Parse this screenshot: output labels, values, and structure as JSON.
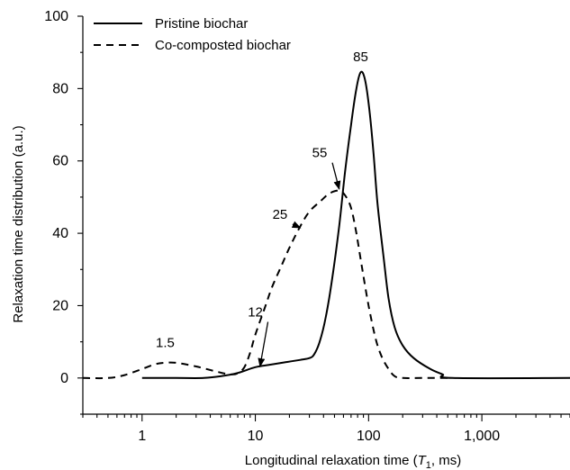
{
  "chart_data": {
    "type": "line",
    "xscale": "log",
    "xlim": [
      0.3,
      6000
    ],
    "ylim": [
      -10,
      100
    ],
    "xlabel": "Longitudinal relaxation time (T₁, ms)",
    "xlabel_parts": {
      "prefix": "Longitudinal relaxation time (",
      "var": "T",
      "sub": "1",
      "suffix": ", ms)"
    },
    "ylabel": "Relaxation time distribution (a.u.)",
    "x_ticks": [
      {
        "value": 1,
        "label": "1"
      },
      {
        "value": 10,
        "label": "10"
      },
      {
        "value": 100,
        "label": "100"
      },
      {
        "value": 1000,
        "label": "1,000"
      }
    ],
    "y_ticks": [
      {
        "value": 0,
        "label": "0"
      },
      {
        "value": 20,
        "label": "20"
      },
      {
        "value": 40,
        "label": "40"
      },
      {
        "value": 60,
        "label": "60"
      },
      {
        "value": 80,
        "label": "80"
      },
      {
        "value": 100,
        "label": "100"
      }
    ],
    "legend_position": "top-left",
    "series": [
      {
        "name": "Pristine biochar",
        "style": "solid",
        "color": "#000000",
        "points": [
          [
            1,
            0
          ],
          [
            2,
            0
          ],
          [
            3.5,
            0
          ],
          [
            5,
            0.5
          ],
          [
            7,
            1.4
          ],
          [
            10,
            3
          ],
          [
            13,
            3.6
          ],
          [
            18,
            4.3
          ],
          [
            25,
            5
          ],
          [
            30,
            5.5
          ],
          [
            33,
            6.5
          ],
          [
            37,
            10
          ],
          [
            42,
            17
          ],
          [
            48,
            28
          ],
          [
            55,
            42
          ],
          [
            62,
            57
          ],
          [
            70,
            70
          ],
          [
            78,
            80
          ],
          [
            85,
            84.5
          ],
          [
            92,
            83
          ],
          [
            100,
            76
          ],
          [
            110,
            63
          ],
          [
            120,
            48
          ],
          [
            135,
            34
          ],
          [
            150,
            22
          ],
          [
            170,
            14
          ],
          [
            200,
            9
          ],
          [
            250,
            5.5
          ],
          [
            350,
            2.5
          ],
          [
            450,
            1
          ],
          [
            550,
            0
          ],
          [
            6000,
            0
          ]
        ]
      },
      {
        "name": "Co-composted biochar",
        "style": "dashed",
        "color": "#000000",
        "points": [
          [
            0.3,
            0
          ],
          [
            0.5,
            0
          ],
          [
            0.7,
            0.8
          ],
          [
            1,
            2.5
          ],
          [
            1.3,
            3.8
          ],
          [
            1.6,
            4.2
          ],
          [
            2,
            4.2
          ],
          [
            3,
            3.2
          ],
          [
            4.5,
            1.8
          ],
          [
            6,
            1
          ],
          [
            7,
            1.3
          ],
          [
            8,
            3
          ],
          [
            9,
            7
          ],
          [
            10,
            12
          ],
          [
            12,
            19
          ],
          [
            14,
            25
          ],
          [
            17,
            31
          ],
          [
            20,
            36
          ],
          [
            25,
            42
          ],
          [
            30,
            46
          ],
          [
            38,
            49
          ],
          [
            45,
            51
          ],
          [
            55,
            51.8
          ],
          [
            62,
            50.5
          ],
          [
            70,
            47
          ],
          [
            78,
            40
          ],
          [
            88,
            30
          ],
          [
            100,
            20
          ],
          [
            115,
            11
          ],
          [
            130,
            6
          ],
          [
            150,
            2.5
          ],
          [
            170,
            0.5
          ],
          [
            200,
            0
          ],
          [
            300,
            0
          ],
          [
            500,
            0
          ]
        ]
      }
    ],
    "annotations": [
      {
        "text": "1.5",
        "x": 1.6,
        "y": 8.5,
        "arrow": false
      },
      {
        "text": "12",
        "x": 10,
        "y": 17,
        "arrow": true,
        "arrow_to": [
          11,
          3.2
        ]
      },
      {
        "text": "25",
        "x": 16.5,
        "y": 44,
        "arrow": true,
        "arrow_to": [
          25,
          41.5
        ]
      },
      {
        "text": "55",
        "x": 37,
        "y": 61,
        "arrow": true,
        "arrow_to": [
          55,
          52.2
        ]
      },
      {
        "text": "85",
        "x": 85,
        "y": 87.5,
        "arrow": false
      }
    ]
  }
}
